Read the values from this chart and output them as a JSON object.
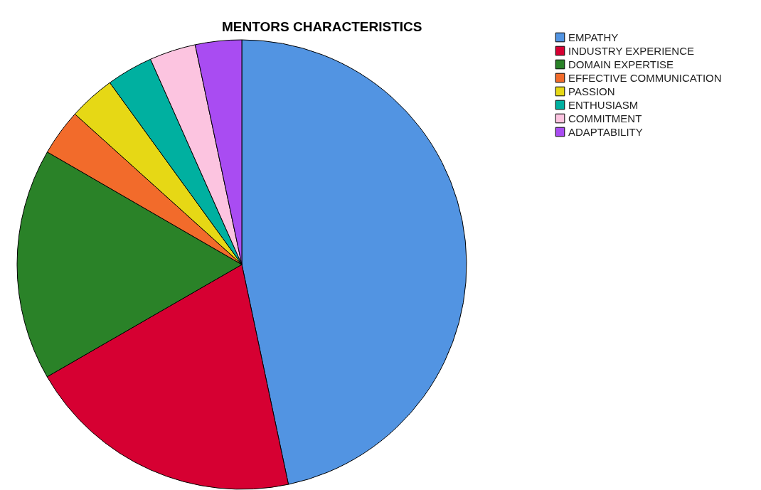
{
  "chart_data": {
    "type": "pie",
    "title": "MENTORS CHARACTERISTICS",
    "categories": [
      "EMPATHY",
      "INDUSTRY EXPERIENCE",
      "DOMAIN EXPERTISE",
      "EFFECTIVE COMMUNICATION",
      "PASSION",
      "ENTHUSIASM",
      "COMMITMENT",
      "ADAPTABILITY"
    ],
    "values": [
      46.67,
      20,
      16.67,
      3.33,
      3.33,
      3.33,
      3.33,
      3.33
    ],
    "colors": [
      "#5294e2",
      "#d60032",
      "#2a8228",
      "#f26b2b",
      "#e6d815",
      "#00b0a0",
      "#fcc4e0",
      "#a94cf2"
    ],
    "legend": "top right"
  }
}
